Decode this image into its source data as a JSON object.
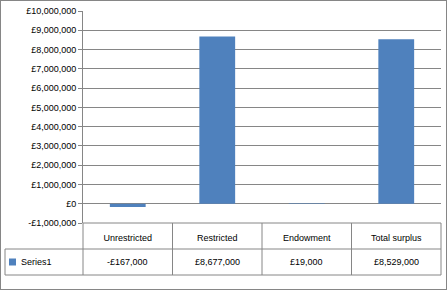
{
  "chart_data": {
    "type": "bar",
    "categories": [
      "Unrestricted",
      "Restricted",
      "Endowment",
      "Total surplus"
    ],
    "series": [
      {
        "name": "Series1",
        "color": "#4f81bd",
        "values": [
          -167000,
          8677000,
          19000,
          8529000
        ],
        "value_labels": [
          "-£167,000",
          "£8,677,000",
          "£19,000",
          "£8,529,000"
        ]
      }
    ],
    "ylim": [
      -1000000,
      10000000
    ],
    "yticks": [
      {
        "value": -1000000,
        "label": "-£1,000,000"
      },
      {
        "value": 0,
        "label": "£0"
      },
      {
        "value": 1000000,
        "label": "£1,000,000"
      },
      {
        "value": 2000000,
        "label": "£2,000,000"
      },
      {
        "value": 3000000,
        "label": "£3,000,000"
      },
      {
        "value": 4000000,
        "label": "£4,000,000"
      },
      {
        "value": 5000000,
        "label": "£5,000,000"
      },
      {
        "value": 6000000,
        "label": "£6,000,000"
      },
      {
        "value": 7000000,
        "label": "£7,000,000"
      },
      {
        "value": 8000000,
        "label": "£8,000,000"
      },
      {
        "value": 9000000,
        "label": "£9,000,000"
      },
      {
        "value": 10000000,
        "label": "£10,000,000"
      }
    ],
    "grid": true
  }
}
